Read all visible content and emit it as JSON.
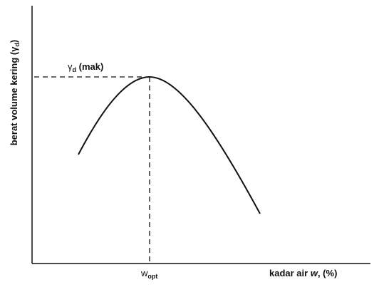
{
  "axes": {
    "y_label": {
      "text": "berat volume kering (",
      "symbol": "γ",
      "subscript": "d",
      "suffix": ")"
    },
    "x_label": {
      "text": "kadar air ",
      "symbol": "w",
      "suffix": ", (%)"
    }
  },
  "annotations": {
    "peak": {
      "symbol": "γ",
      "subscript": "d",
      "suffix": " (mak)"
    },
    "optimum": {
      "symbol": "w",
      "subscript": "opt"
    }
  }
}
